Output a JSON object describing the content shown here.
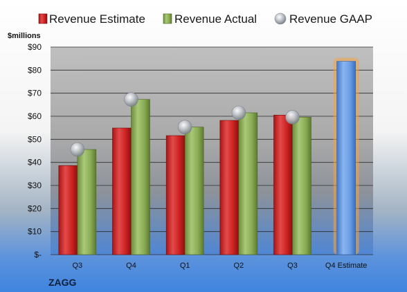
{
  "company": "ZAGG",
  "colors": {
    "estimate": "#d42a2a",
    "actual": "#8fb15a",
    "gaap": "#b8bcc4",
    "estimate_future": "#6b9be0",
    "future_glow": "#f6a341"
  },
  "chart_data": {
    "type": "bar",
    "title": "",
    "xlabel": "",
    "ylabel": "$millions",
    "ylim": [
      0,
      90
    ],
    "yticks": [
      "$-",
      "$10",
      "$20",
      "$30",
      "$40",
      "$50",
      "$60",
      "$70",
      "$80",
      "$90"
    ],
    "grid": true,
    "legend_position": "top",
    "categories": [
      "Q3",
      "Q4",
      "Q1",
      "Q2",
      "Q3",
      "Q4 Estimate"
    ],
    "series": [
      {
        "name": "Revenue Estimate",
        "type": "bar",
        "values": [
          38.6,
          54.9,
          51.6,
          58.2,
          60.5,
          83.8
        ]
      },
      {
        "name": "Revenue Actual",
        "type": "bar",
        "values": [
          45.6,
          67.3,
          55.3,
          61.5,
          59.6,
          null
        ]
      },
      {
        "name": "Revenue GAAP",
        "type": "marker",
        "values": [
          45.6,
          67.3,
          55.3,
          61.5,
          59.6,
          null
        ]
      }
    ]
  }
}
